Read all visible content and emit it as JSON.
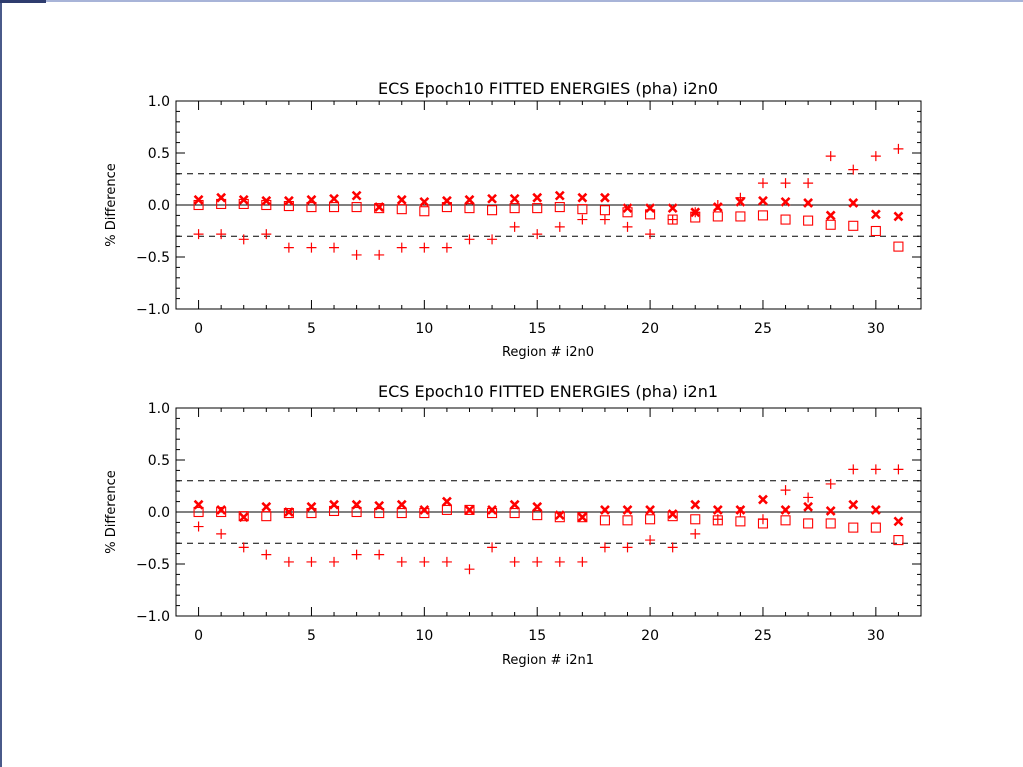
{
  "colors": {
    "marker": "#ff0000",
    "axis": "#000000",
    "background": "#ffffff"
  },
  "chart_data": [
    {
      "type": "scatter",
      "title": "ECS Epoch10 FITTED ENERGIES (pha) i2n0",
      "xlabel": "Region # i2n0",
      "ylabel": "% Difference",
      "xlim": [
        -1,
        32
      ],
      "ylim": [
        -1.0,
        1.0
      ],
      "xticks": [
        0,
        5,
        10,
        15,
        20,
        25,
        30
      ],
      "yticks": [
        1.0,
        0.5,
        0.0,
        -0.5,
        -1.0
      ],
      "ytick_labels": [
        "1.0",
        "0.5",
        "0.0",
        "−0.5",
        "−1.0"
      ],
      "hlines": [
        {
          "y": 0.3,
          "style": "dashed"
        },
        {
          "y": 0.0,
          "style": "solid"
        },
        {
          "y": -0.3,
          "style": "dashed"
        }
      ],
      "grid": false,
      "series": [
        {
          "marker": "plus",
          "x": [
            0,
            1,
            2,
            3,
            4,
            5,
            6,
            7,
            8,
            9,
            10,
            11,
            12,
            13,
            14,
            15,
            16,
            17,
            18,
            19,
            20,
            21,
            22,
            23,
            24,
            25,
            26,
            27,
            28,
            29,
            30,
            31
          ],
          "y": [
            -0.28,
            -0.28,
            -0.33,
            -0.28,
            -0.41,
            -0.41,
            -0.41,
            -0.48,
            -0.48,
            -0.41,
            -0.41,
            -0.41,
            -0.33,
            -0.33,
            -0.21,
            -0.28,
            -0.21,
            -0.14,
            -0.14,
            -0.21,
            -0.28,
            -0.14,
            -0.07,
            0.0,
            0.07,
            0.21,
            0.21,
            0.21,
            0.47,
            0.34,
            0.47,
            0.54
          ]
        },
        {
          "marker": "x",
          "x": [
            0,
            1,
            2,
            3,
            4,
            5,
            6,
            7,
            8,
            9,
            10,
            11,
            12,
            13,
            14,
            15,
            16,
            17,
            18,
            19,
            20,
            21,
            22,
            23,
            24,
            25,
            26,
            27,
            28,
            29,
            30,
            31
          ],
          "y": [
            0.05,
            0.07,
            0.05,
            0.04,
            0.04,
            0.05,
            0.06,
            0.09,
            -0.02,
            0.05,
            0.03,
            0.04,
            0.05,
            0.06,
            0.06,
            0.07,
            0.09,
            0.07,
            0.07,
            -0.03,
            -0.03,
            -0.03,
            -0.07,
            -0.02,
            0.03,
            0.04,
            0.03,
            0.02,
            -0.1,
            0.02,
            -0.09,
            -0.11
          ]
        },
        {
          "marker": "square",
          "x": [
            0,
            1,
            2,
            3,
            4,
            5,
            6,
            7,
            8,
            9,
            10,
            11,
            12,
            13,
            14,
            15,
            16,
            17,
            18,
            19,
            20,
            21,
            22,
            23,
            24,
            25,
            26,
            27,
            28,
            29,
            30,
            31
          ],
          "y": [
            0.0,
            0.01,
            0.01,
            0.0,
            -0.01,
            -0.02,
            -0.02,
            -0.02,
            -0.03,
            -0.04,
            -0.06,
            -0.02,
            -0.03,
            -0.05,
            -0.03,
            -0.03,
            -0.02,
            -0.04,
            -0.05,
            -0.07,
            -0.09,
            -0.14,
            -0.12,
            -0.11,
            -0.11,
            -0.1,
            -0.14,
            -0.15,
            -0.19,
            -0.2,
            -0.25,
            -0.4
          ]
        }
      ]
    },
    {
      "type": "scatter",
      "title": "ECS Epoch10 FITTED ENERGIES (pha) i2n1",
      "xlabel": "Region # i2n1",
      "ylabel": "% Difference",
      "xlim": [
        -1,
        32
      ],
      "ylim": [
        -1.0,
        1.0
      ],
      "xticks": [
        0,
        5,
        10,
        15,
        20,
        25,
        30
      ],
      "yticks": [
        1.0,
        0.5,
        0.0,
        -0.5,
        -1.0
      ],
      "ytick_labels": [
        "1.0",
        "0.5",
        "0.0",
        "−0.5",
        "−1.0"
      ],
      "hlines": [
        {
          "y": 0.3,
          "style": "dashed"
        },
        {
          "y": 0.0,
          "style": "solid"
        },
        {
          "y": -0.3,
          "style": "dashed"
        }
      ],
      "grid": false,
      "series": [
        {
          "marker": "plus",
          "x": [
            0,
            1,
            2,
            3,
            4,
            5,
            6,
            7,
            8,
            9,
            10,
            11,
            12,
            13,
            14,
            15,
            16,
            17,
            18,
            19,
            20,
            21,
            22,
            23,
            24,
            25,
            26,
            27,
            28,
            29,
            30,
            31
          ],
          "y": [
            -0.14,
            -0.21,
            -0.34,
            -0.41,
            -0.48,
            -0.48,
            -0.48,
            -0.41,
            -0.41,
            -0.48,
            -0.48,
            -0.48,
            -0.55,
            -0.34,
            -0.48,
            -0.48,
            -0.48,
            -0.48,
            -0.34,
            -0.34,
            -0.27,
            -0.34,
            -0.21,
            -0.07,
            0.0,
            -0.07,
            0.21,
            0.14,
            0.27,
            0.41,
            0.41,
            0.41
          ]
        },
        {
          "marker": "x",
          "x": [
            0,
            1,
            2,
            3,
            4,
            5,
            6,
            7,
            8,
            9,
            10,
            11,
            12,
            13,
            14,
            15,
            16,
            17,
            18,
            19,
            20,
            21,
            22,
            23,
            24,
            25,
            26,
            27,
            28,
            29,
            30,
            31
          ],
          "y": [
            0.07,
            0.02,
            -0.05,
            0.05,
            0.0,
            0.05,
            0.07,
            0.07,
            0.06,
            0.07,
            0.02,
            0.1,
            0.02,
            0.02,
            0.07,
            0.05,
            -0.03,
            -0.05,
            0.02,
            0.02,
            0.02,
            -0.02,
            0.07,
            0.02,
            0.02,
            0.12,
            0.02,
            0.05,
            0.01,
            0.07,
            0.02,
            -0.09
          ]
        },
        {
          "marker": "square",
          "x": [
            0,
            1,
            2,
            3,
            4,
            5,
            6,
            7,
            8,
            9,
            10,
            11,
            12,
            13,
            14,
            15,
            16,
            17,
            18,
            19,
            20,
            21,
            22,
            23,
            24,
            25,
            26,
            27,
            28,
            29,
            30,
            31
          ],
          "y": [
            0.0,
            0.0,
            -0.04,
            -0.04,
            -0.01,
            -0.01,
            0.01,
            0.0,
            -0.01,
            -0.01,
            -0.01,
            0.02,
            0.02,
            -0.01,
            -0.01,
            -0.03,
            -0.05,
            -0.05,
            -0.08,
            -0.08,
            -0.07,
            -0.04,
            -0.07,
            -0.08,
            -0.09,
            -0.11,
            -0.08,
            -0.11,
            -0.11,
            -0.15,
            -0.15,
            -0.27
          ]
        }
      ]
    }
  ]
}
